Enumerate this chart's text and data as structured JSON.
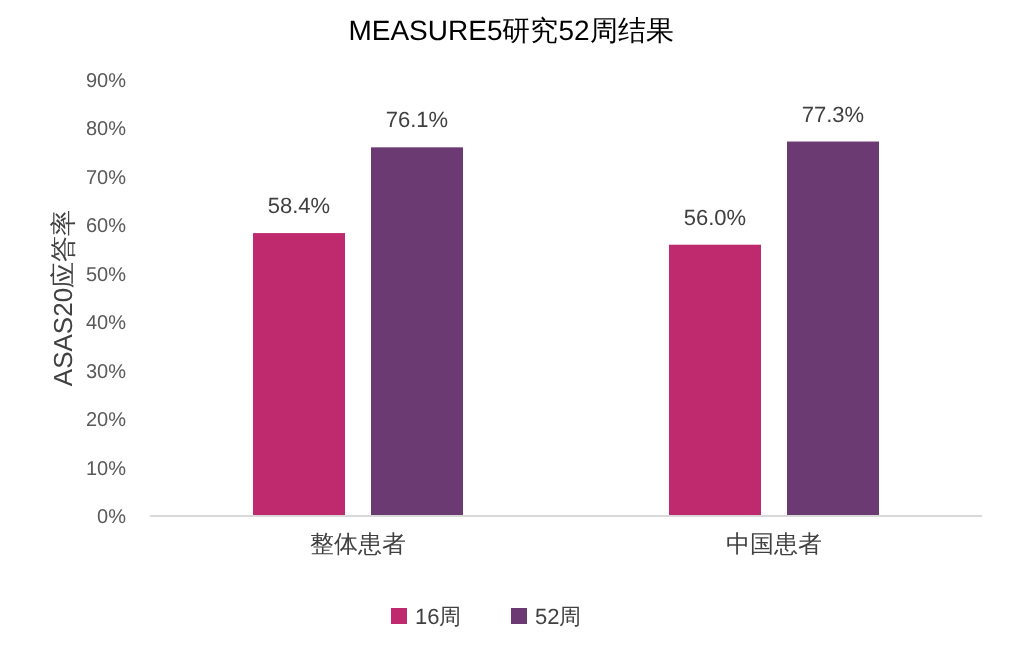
{
  "chart_data": {
    "type": "bar",
    "title": "MEASURE5研究52周结果",
    "ylabel": "ASAS20应答率",
    "categories": [
      "整体患者",
      "中国患者"
    ],
    "series": [
      {
        "name": "16周",
        "color": "#bf2a6e",
        "values": [
          58.4,
          56.0
        ],
        "value_labels": [
          "58.4%",
          "56.0%"
        ]
      },
      {
        "name": "52周",
        "color": "#6b3a72",
        "values": [
          76.1,
          77.3
        ],
        "value_labels": [
          "76.1%",
          "77.3%"
        ]
      }
    ],
    "ylim": [
      0,
      90
    ],
    "yticks": [
      {
        "value": 0,
        "label": "0%"
      },
      {
        "value": 10,
        "label": "10%"
      },
      {
        "value": 20,
        "label": "20%"
      },
      {
        "value": 30,
        "label": "30%"
      },
      {
        "value": 40,
        "label": "40%"
      },
      {
        "value": 50,
        "label": "50%"
      },
      {
        "value": 60,
        "label": "60%"
      },
      {
        "value": 70,
        "label": "70%"
      },
      {
        "value": 80,
        "label": "80%"
      },
      {
        "value": 90,
        "label": "90%"
      }
    ],
    "grid": false,
    "legend": "bottom"
  }
}
